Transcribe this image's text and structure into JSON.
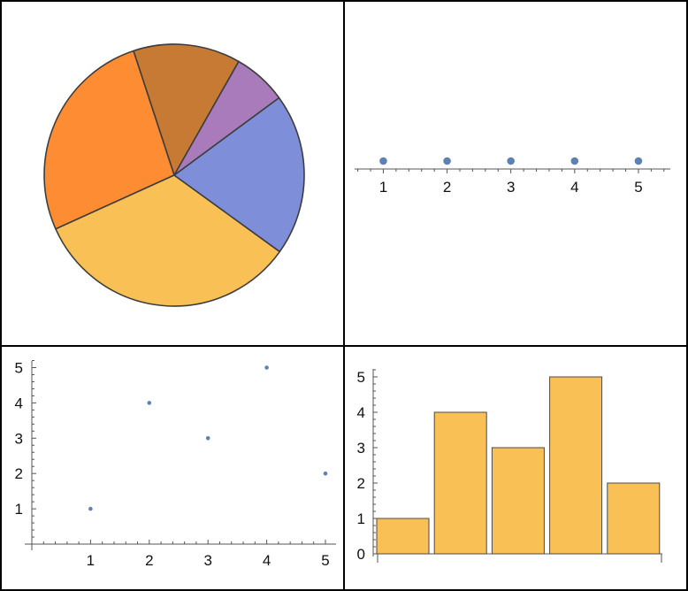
{
  "colors": {
    "frame": "#000000",
    "point": "#5e81b5",
    "bar_fill": "#f9c055",
    "bar_stroke": "#4a4a4a",
    "axis": "#555555",
    "pie_stroke": "#3d3d3d"
  },
  "chart_data": [
    {
      "type": "pie",
      "values": [
        2,
        4,
        5,
        3,
        1
      ],
      "colors": [
        "#c67a33",
        "#fd8c33",
        "#f9c055",
        "#7e8ed8",
        "#a97bba"
      ],
      "start": "up-right",
      "direction": "counterclockwise"
    },
    {
      "type": "scatter",
      "variant": "number-line",
      "x": [
        1,
        2,
        3,
        4,
        5
      ],
      "xticks": [
        "1",
        "2",
        "3",
        "4",
        "5"
      ],
      "xlim": [
        0.55,
        5.5
      ]
    },
    {
      "type": "scatter",
      "x": [
        1,
        2,
        3,
        4,
        5
      ],
      "y": [
        1,
        4,
        3,
        5,
        2
      ],
      "xticks": [
        "1",
        "2",
        "3",
        "4",
        "5"
      ],
      "yticks": [
        "1",
        "2",
        "3",
        "4",
        "5"
      ],
      "xlim": [
        0,
        5
      ],
      "ylim": [
        0,
        5
      ]
    },
    {
      "type": "bar",
      "values": [
        1,
        4,
        3,
        5,
        2
      ],
      "yticks": [
        "0",
        "1",
        "2",
        "3",
        "4",
        "5"
      ],
      "ylim": [
        0,
        5
      ]
    }
  ]
}
